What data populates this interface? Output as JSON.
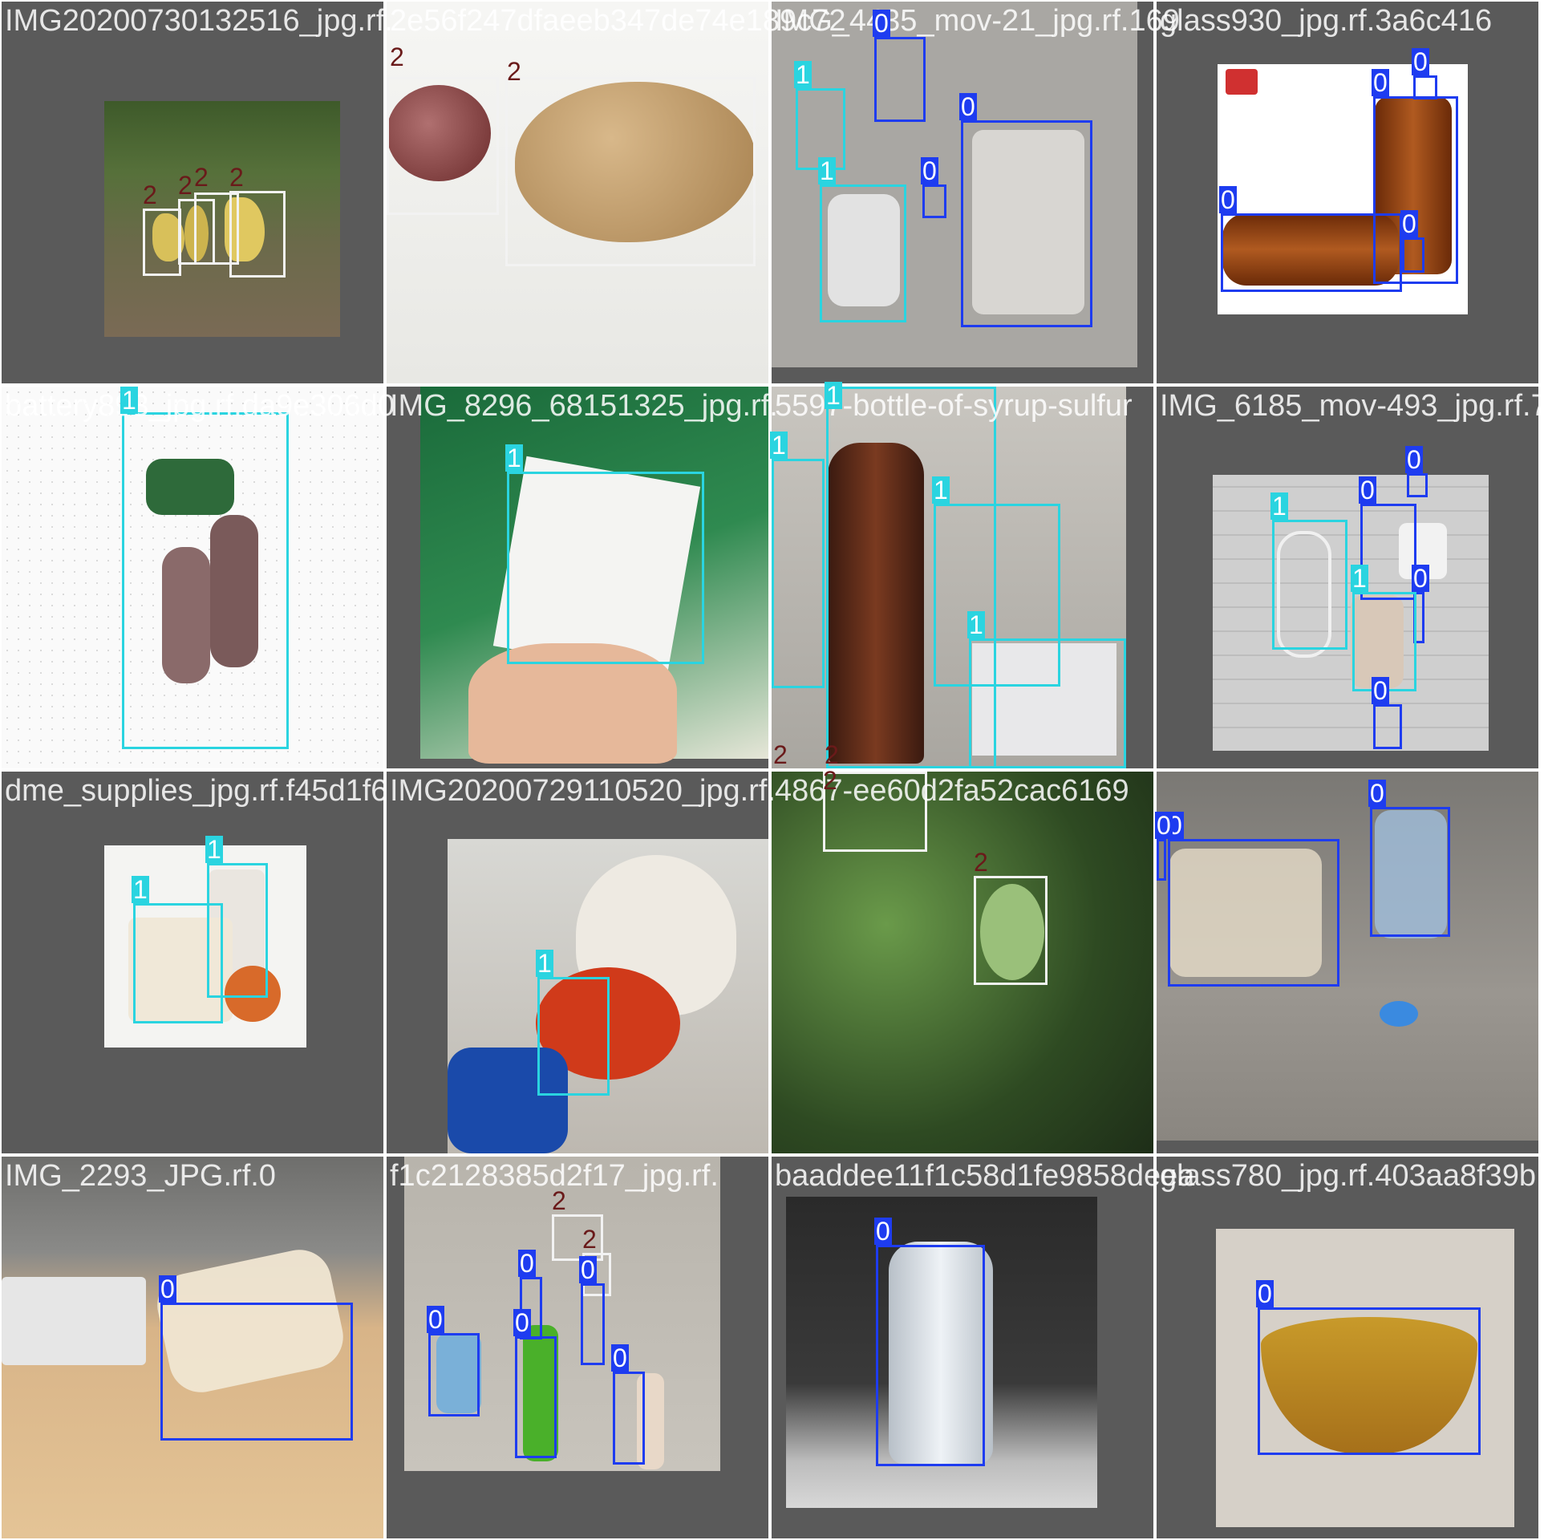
{
  "tiles": [
    {
      "name": "tile-banana-peels",
      "filename": "IMG20200730132516_jpg.rf.",
      "labels": [
        "2",
        "2",
        "2",
        "2"
      ]
    },
    {
      "name": "tile-onion-potato",
      "filename": "2e56f247dfaeeb347de74e189c72",
      "labels": [
        "2",
        "2"
      ]
    },
    {
      "name": "tile-trash-flatlay",
      "filename": "IMG_4435_mov-21_jpg.rf.169",
      "labels": [
        "0",
        "1",
        "1",
        "0",
        "0"
      ]
    },
    {
      "name": "tile-amber-bottles",
      "filename": "glass930_jpg.rf.3a6c416",
      "labels": [
        "0",
        "0",
        "0",
        "0"
      ]
    },
    {
      "name": "tile-battery-pile",
      "filename": "battery893_jpg.rf.da9e306d0",
      "labels": [
        "1"
      ]
    },
    {
      "name": "tile-hand-packet",
      "filename": "IMG_8296_68151325_jpg.rf.",
      "labels": [
        "1"
      ]
    },
    {
      "name": "tile-syrup-pills",
      "filename": "5597-bottle-of-syrup-sulfur",
      "labels": [
        "1",
        "1",
        "1",
        "1",
        "2",
        "2"
      ]
    },
    {
      "name": "tile-cable-floor",
      "filename": "IMG_6185_mov-493_jpg.rf.7",
      "labels": [
        "0",
        "0",
        "0",
        "1",
        "1",
        "0"
      ]
    },
    {
      "name": "tile-medical-supplies",
      "filename": "dme_supplies_jpg.rf.f45d1f6",
      "labels": [
        "1",
        "1"
      ]
    },
    {
      "name": "tile-gloved-syringe",
      "filename": "IMG20200729110520_jpg.rf.",
      "labels": [
        "1"
      ]
    },
    {
      "name": "tile-broccoli-leaves",
      "filename": "4867-ee60d2fa52cac6169",
      "labels": [
        "2",
        "2"
      ]
    },
    {
      "name": "tile-jars-pavement",
      "filename": "",
      "labels": [
        "0",
        "0",
        "0"
      ]
    },
    {
      "name": "tile-desk-bottle",
      "filename": "IMG_2293_JPG.rf.0",
      "labels": [
        "0"
      ]
    },
    {
      "name": "tile-bottles-table",
      "filename": "f1c2128385d2f17_jpg.rf.",
      "labels": [
        "2",
        "2",
        "0",
        "0",
        "0",
        "0",
        "0"
      ]
    },
    {
      "name": "tile-water-bottle",
      "filename": "baaddee11f1c58d1fe9858deea",
      "labels": [
        "0"
      ]
    },
    {
      "name": "tile-amber-bowl",
      "filename": "glass780_jpg.rf.403aa8f39b",
      "labels": [
        "0"
      ]
    }
  ],
  "colors": {
    "class0": "#1e3cf0",
    "class1": "#2ad4e0",
    "class2": "#f2f2f2",
    "tileBackground": "#5a5a5a"
  }
}
